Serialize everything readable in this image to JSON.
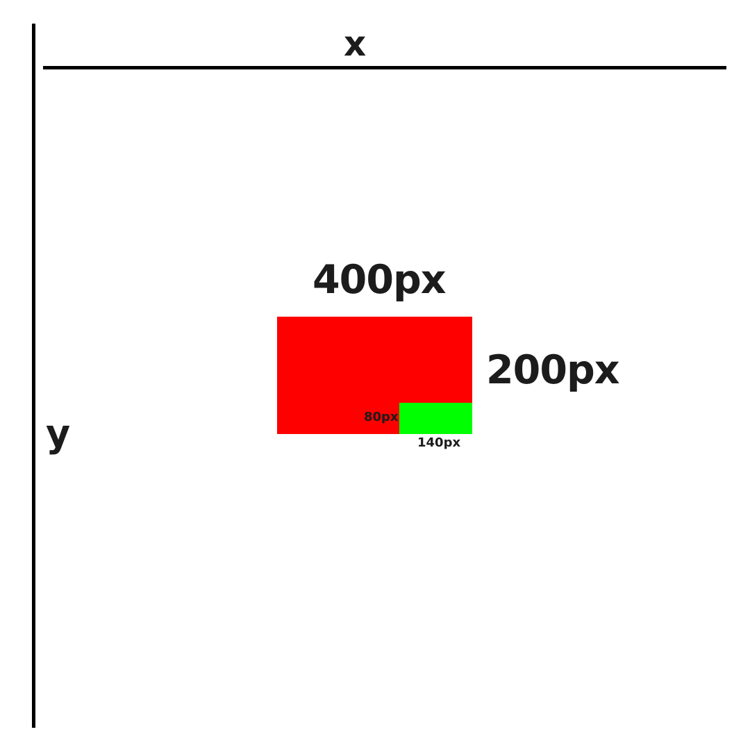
{
  "axes": {
    "x_label": "x",
    "y_label": "y"
  },
  "outer_rect": {
    "color": "#ff0000",
    "width_label": "400px",
    "height_label": "200px"
  },
  "inner_rect": {
    "color": "#00ff00",
    "height_label": "80px",
    "width_label": "140px"
  }
}
